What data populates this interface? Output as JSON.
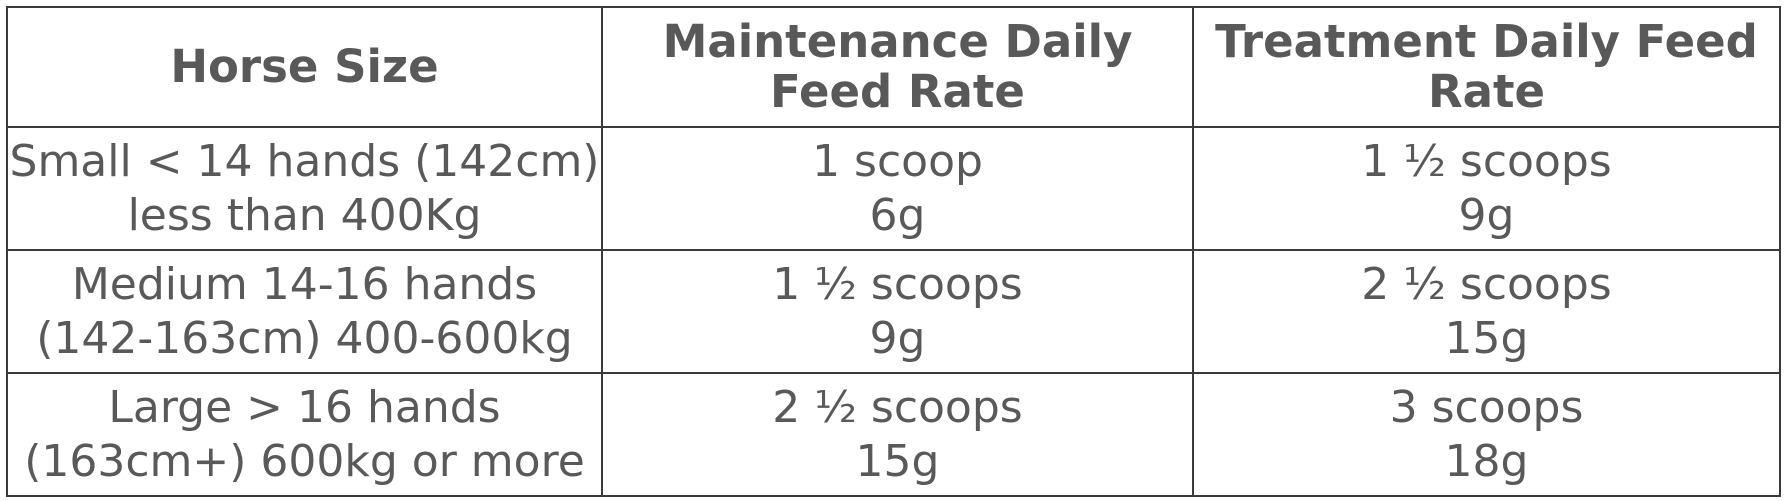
{
  "table": {
    "headers": [
      {
        "line1": "Horse Size",
        "line2": ""
      },
      {
        "line1": "Maintenance Daily",
        "line2": "Feed Rate"
      },
      {
        "line1": "Treatment Daily Feed",
        "line2": "Rate"
      }
    ],
    "rows": [
      {
        "size_line1": "Small < 14 hands (142cm)",
        "size_line2": "less than 400Kg",
        "maintenance_scoops": "1 scoop",
        "maintenance_grams": "6g",
        "treatment_scoops": "1 ½ scoops",
        "treatment_grams": "9g"
      },
      {
        "size_line1": "Medium 14-16 hands",
        "size_line2": "(142-163cm) 400-600kg",
        "maintenance_scoops": "1 ½ scoops",
        "maintenance_grams": "9g",
        "treatment_scoops": "2 ½ scoops",
        "treatment_grams": "15g"
      },
      {
        "size_line1": "Large > 16 hands",
        "size_line2": "(163cm+) 600kg or more",
        "maintenance_scoops": "2 ½ scoops",
        "maintenance_grams": "15g",
        "treatment_scoops": "3 scoops",
        "treatment_grams": "18g"
      }
    ]
  }
}
